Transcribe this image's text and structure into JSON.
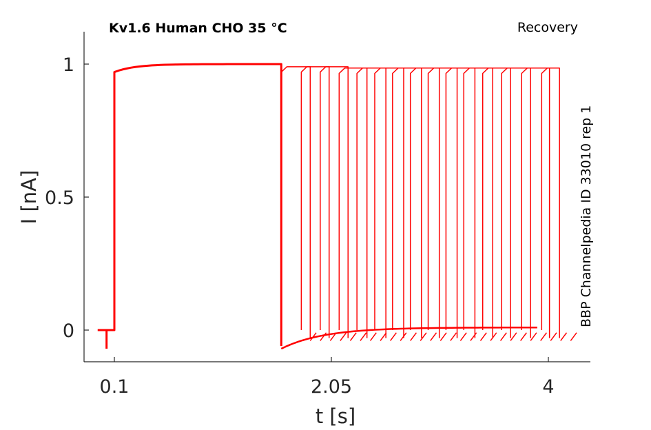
{
  "chart_data": {
    "type": "line",
    "title": "Kv1.6  Human  CHO  35 °C",
    "subtitle": "Recovery",
    "side_note": "BBP Channelpedia ID 33010 rep 1",
    "xlabel": "t [s]",
    "ylabel": "I [nA]",
    "xlim": [
      -0.05,
      4.2
    ],
    "ylim": [
      -0.12,
      1.12
    ],
    "x_ticks": [
      0.1,
      2.05,
      4
    ],
    "x_tick_labels": [
      "0.1",
      "2.05",
      "4"
    ],
    "y_ticks": [
      0,
      0.5,
      1
    ],
    "y_tick_labels": [
      "0",
      "0.5",
      "1"
    ],
    "grid": false,
    "line_color": "#ff0000",
    "conditioning_pulse": {
      "start": 0.1,
      "end": 1.6,
      "peak": 1.0
    },
    "test_pulses": {
      "start": [
        1.6,
        1.78,
        1.95,
        2.12,
        2.28,
        2.44,
        2.6,
        2.76,
        2.92,
        3.08,
        3.24,
        3.41,
        3.58,
        3.76,
        3.94
      ],
      "end": [
        1.86,
        2.03,
        2.2,
        2.37,
        2.54,
        2.7,
        2.86,
        3.02,
        3.18,
        3.34,
        3.5,
        3.66,
        3.84,
        4.01,
        4.1
      ],
      "peak": [
        0.99,
        0.99,
        0.99,
        0.985,
        0.985,
        0.985,
        0.985,
        0.985,
        0.985,
        0.985,
        0.985,
        0.985,
        0.985,
        0.985,
        0.985
      ]
    },
    "recovery_trace": {
      "start": 1.6,
      "end": 3.9,
      "min": -0.07,
      "final": 0.01
    },
    "tail_dashes": {
      "start": 1.86,
      "end": 4.2,
      "step": 0.09,
      "min": -0.04,
      "max": -0.01
    }
  }
}
